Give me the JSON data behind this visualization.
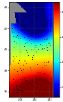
{
  "lon_min": 141.5,
  "lon_max": 147.5,
  "lat_min": 35.5,
  "lat_max": 44.5,
  "temp_min": 3,
  "temp_max": 22,
  "colorbar_ticks": [
    5,
    10,
    15,
    20
  ],
  "colorbar_labels": [
    "5",
    "10",
    "15",
    "20"
  ],
  "lat_ticks": [
    36,
    38,
    40,
    42,
    44
  ],
  "lon_ticks": [
    143,
    145,
    147
  ],
  "figsize": [
    0.92,
    1.48
  ],
  "dpi": 100,
  "land_color": "#888888",
  "bg_color": "#aaaaaa"
}
